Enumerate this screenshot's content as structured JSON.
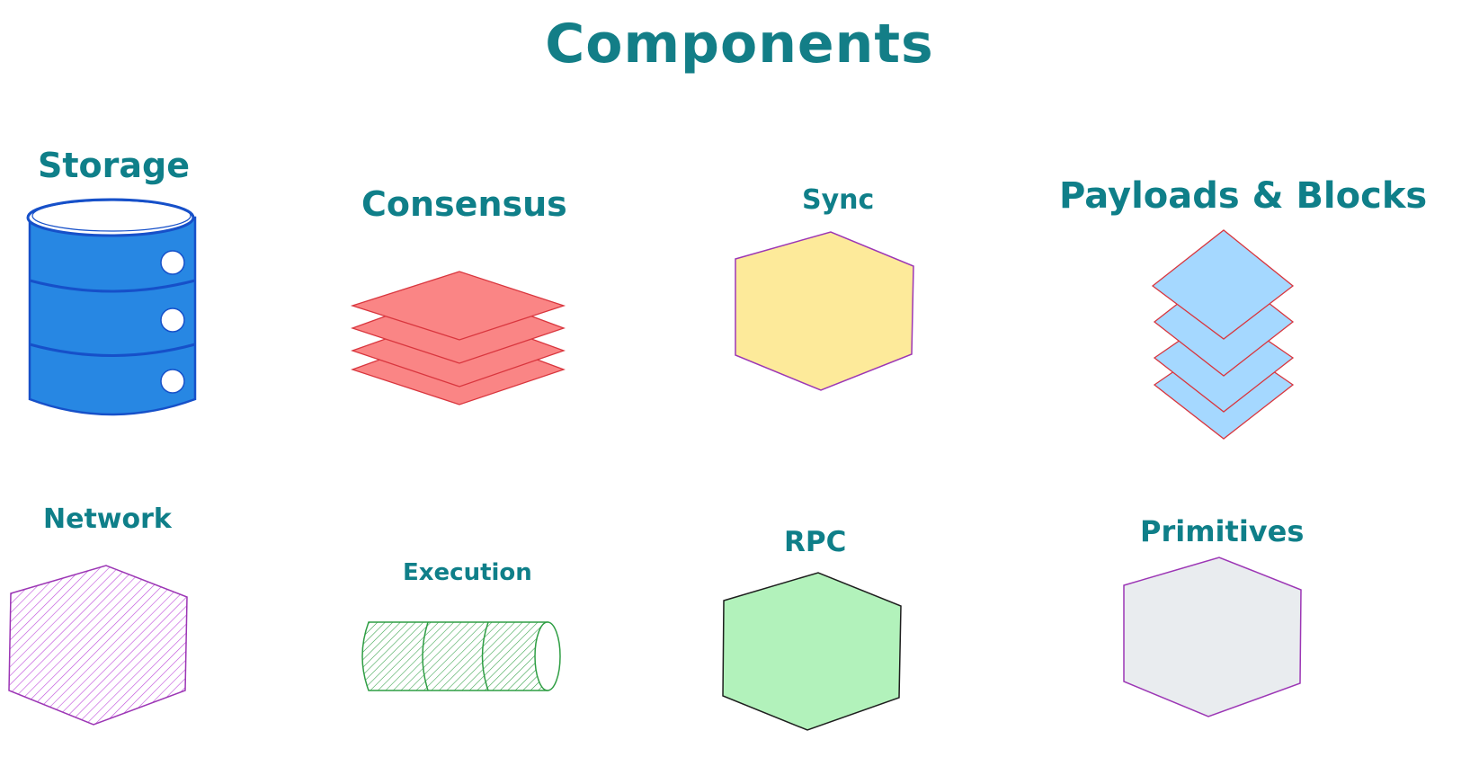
{
  "title": "Components",
  "components": [
    {
      "label": "Storage",
      "shape": "database-icon",
      "fill": "#2787e3",
      "stroke": "#1650c9"
    },
    {
      "label": "Consensus",
      "shape": "stacked-layers-icon",
      "fill": "#fa8585",
      "stroke": "#d9363e"
    },
    {
      "label": "Sync",
      "shape": "hexagon-icon",
      "fill": "#fdea9a",
      "stroke": "#9c36b5"
    },
    {
      "label": "Payloads & Blocks",
      "shape": "stacked-diamonds-icon",
      "fill": "#a5d8ff",
      "stroke": "#d9363e"
    },
    {
      "label": "Network",
      "shape": "hatched-hexagon-icon",
      "fill": "#be4bdb",
      "stroke": "#9c36b5"
    },
    {
      "label": "Execution",
      "shape": "cylinder-pipe-icon",
      "fill": "#2f9e44",
      "stroke": "#2f9e44"
    },
    {
      "label": "RPC",
      "shape": "hexagon-icon",
      "fill": "#b2f2bb",
      "stroke": "#1e1e1e"
    },
    {
      "label": "Primitives",
      "shape": "hexagon-icon",
      "fill": "#e9ecef",
      "stroke": "#9c36b5"
    }
  ],
  "colors": {
    "label_text": "#0f7f89",
    "background": "#ffffff"
  }
}
